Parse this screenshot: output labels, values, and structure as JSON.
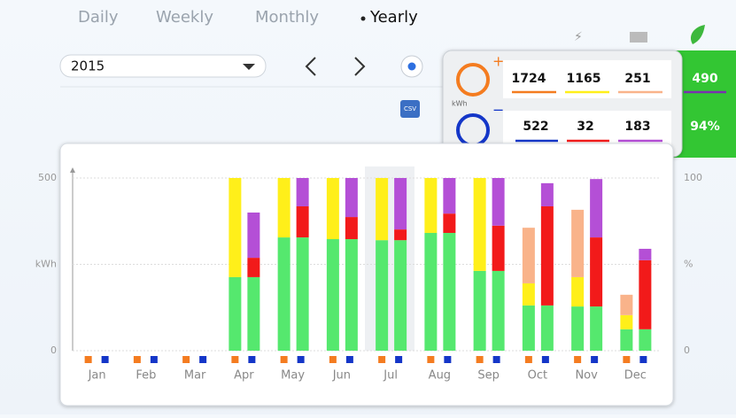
{
  "tabs": [
    "Daily",
    "Weekly",
    "Monthly",
    "Yearly"
  ],
  "year": "2015",
  "summary": {
    "unit": "kWh",
    "top": [
      "1724",
      "1165",
      "251"
    ],
    "top_total": "490",
    "bottom": [
      "522",
      "32",
      "183"
    ],
    "bottom_total": "94%"
  },
  "chart_data": {
    "type": "bar",
    "categories": [
      "Jan",
      "Feb",
      "Mar",
      "Apr",
      "May",
      "Jun",
      "Jul",
      "Aug",
      "Sep",
      "Oct",
      "Nov",
      "Dec"
    ],
    "groups": [
      {
        "series": [
          {
            "color": "#55e86e",
            "values": [
              0,
              0,
              0,
              213,
              328,
              323,
              320,
              341,
              231,
              131,
              128,
              62
            ]
          },
          {
            "color": "#ffef1a",
            "values": [
              0,
              0,
              0,
              287,
              172,
              177,
              180,
              159,
              269,
              64,
              85,
              41
            ]
          },
          {
            "color": "#f9b38a",
            "values": [
              0,
              0,
              0,
              0,
              0,
              0,
              0,
              0,
              0,
              161,
              195,
              59
            ]
          }
        ]
      },
      {
        "series": [
          {
            "color": "#55e86e",
            "values": [
              0,
              0,
              0,
              213,
              328,
              323,
              320,
              341,
              231,
              131,
              128,
              62
            ]
          },
          {
            "color": "#f21a1a",
            "values": [
              0,
              0,
              0,
              56,
              90,
              64,
              31,
              56,
              131,
              287,
              200,
              200
            ]
          },
          {
            "color": "#b44fd6",
            "values": [
              0,
              0,
              0,
              131,
              82,
              113,
              149,
              103,
              138,
              67,
              169,
              33
            ]
          }
        ]
      }
    ],
    "ylim": [
      0,
      500
    ],
    "yticks": [
      0,
      500
    ],
    "ylabel": "kWh",
    "y2lim": [
      0,
      100
    ],
    "y2ticks": [
      0,
      100
    ],
    "y2label": "%",
    "grid": true
  }
}
